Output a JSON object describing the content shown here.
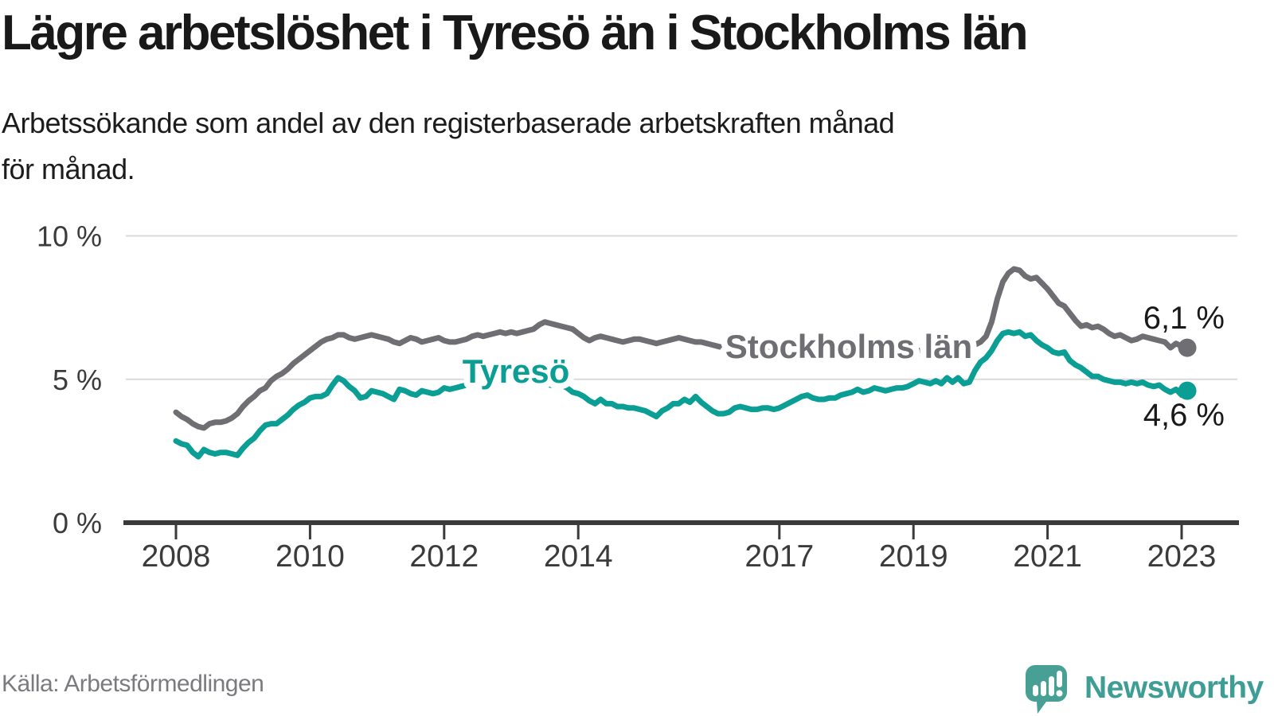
{
  "title": "Lägre arbetslöshet i Tyresö än i Stockholms län",
  "subtitle_lines": [
    "Arbetssökande som andel av den registerbaserade arbetskraften månad",
    "för månad."
  ],
  "source": "Källa: Arbetsförmedlingen",
  "logo": {
    "brand": "Newsworthy"
  },
  "colors": {
    "accent_teal": "#0A9E94",
    "accent_gray": "#6E6E73",
    "axis": "#3A3A3A",
    "grid": "#DADADA",
    "text": "#191919",
    "logo_icon": "#48A094",
    "logo_text": "#3E9D94"
  },
  "chart_data": {
    "type": "line",
    "title": "Lägre arbetslöshet i Tyresö än i Stockholms län",
    "subtitle": "Arbetssökande som andel av den registerbaserade arbetskraften månad för månad.",
    "x_unit": "month",
    "x_start": "2008-01",
    "x_end": "2023-02",
    "ylim": [
      0,
      10.4
    ],
    "grid": "horizontal",
    "legend_position": "inline-labels",
    "x_ticks": [
      {
        "year": 2008,
        "label": "2008"
      },
      {
        "year": 2010,
        "label": "2010"
      },
      {
        "year": 2012,
        "label": "2012"
      },
      {
        "year": 2014,
        "label": "2014"
      },
      {
        "year": 2017,
        "label": "2017"
      },
      {
        "year": 2019,
        "label": "2019"
      },
      {
        "year": 2021,
        "label": "2021"
      },
      {
        "year": 2023,
        "label": "2023"
      }
    ],
    "y_ticks": [
      {
        "value": 0,
        "label": "0 %"
      },
      {
        "value": 5,
        "label": "5 %"
      },
      {
        "value": 10,
        "label": "10 %"
      }
    ],
    "series": [
      {
        "name": "Stockholms län",
        "color": "#6E6E73",
        "end_value": 6.1,
        "end_label": "6,1 %",
        "values": [
          3.85,
          3.7,
          3.6,
          3.45,
          3.35,
          3.3,
          3.45,
          3.5,
          3.5,
          3.55,
          3.65,
          3.8,
          4.05,
          4.25,
          4.4,
          4.6,
          4.7,
          4.95,
          5.1,
          5.2,
          5.35,
          5.55,
          5.7,
          5.85,
          6.0,
          6.15,
          6.3,
          6.4,
          6.45,
          6.55,
          6.55,
          6.45,
          6.4,
          6.45,
          6.5,
          6.55,
          6.5,
          6.45,
          6.4,
          6.3,
          6.25,
          6.35,
          6.45,
          6.4,
          6.3,
          6.35,
          6.4,
          6.45,
          6.35,
          6.3,
          6.3,
          6.35,
          6.4,
          6.5,
          6.55,
          6.5,
          6.55,
          6.6,
          6.65,
          6.6,
          6.65,
          6.6,
          6.65,
          6.7,
          6.75,
          6.9,
          7.0,
          6.95,
          6.9,
          6.85,
          6.8,
          6.75,
          6.6,
          6.45,
          6.35,
          6.45,
          6.5,
          6.45,
          6.4,
          6.35,
          6.3,
          6.35,
          6.4,
          6.4,
          6.35,
          6.3,
          6.25,
          6.3,
          6.35,
          6.4,
          6.45,
          6.4,
          6.35,
          6.3,
          6.3,
          6.25,
          6.2,
          6.15,
          6.1,
          6.1,
          6.05,
          6.1,
          6.15,
          6.1,
          6.05,
          6.0,
          6.0,
          6.0,
          6.0,
          5.95,
          5.95,
          5.95,
          6.0,
          6.05,
          6.1,
          6.05,
          6.0,
          6.0,
          6.0,
          6.0,
          6.0,
          5.95,
          5.9,
          5.9,
          5.9,
          5.95,
          6.0,
          5.95,
          5.9,
          5.9,
          5.95,
          6.0,
          6.0,
          6.0,
          6.0,
          6.0,
          6.05,
          6.1,
          6.15,
          6.1,
          6.1,
          6.1,
          6.15,
          6.2,
          6.3,
          6.5,
          7.0,
          7.8,
          8.4,
          8.7,
          8.85,
          8.8,
          8.6,
          8.5,
          8.55,
          8.35,
          8.15,
          7.9,
          7.65,
          7.55,
          7.3,
          7.05,
          6.85,
          6.9,
          6.8,
          6.85,
          6.75,
          6.6,
          6.5,
          6.55,
          6.45,
          6.35,
          6.4,
          6.5,
          6.45,
          6.4,
          6.35,
          6.3,
          6.1,
          6.25,
          6.15,
          6.1
        ]
      },
      {
        "name": "Tyresö",
        "color": "#0A9E94",
        "end_value": 4.6,
        "end_label": "4,6 %",
        "values": [
          2.85,
          2.75,
          2.7,
          2.45,
          2.3,
          2.55,
          2.45,
          2.4,
          2.45,
          2.45,
          2.4,
          2.35,
          2.6,
          2.8,
          2.95,
          3.2,
          3.4,
          3.45,
          3.45,
          3.6,
          3.75,
          3.95,
          4.1,
          4.2,
          4.35,
          4.4,
          4.4,
          4.5,
          4.8,
          5.05,
          4.95,
          4.75,
          4.6,
          4.35,
          4.4,
          4.6,
          4.55,
          4.5,
          4.4,
          4.3,
          4.65,
          4.6,
          4.5,
          4.45,
          4.6,
          4.55,
          4.5,
          4.55,
          4.7,
          4.65,
          4.7,
          4.75,
          4.8,
          4.85,
          4.9,
          4.85,
          4.8,
          4.8,
          4.85,
          4.9,
          4.9,
          4.85,
          4.85,
          4.9,
          4.9,
          4.85,
          4.85,
          4.8,
          4.8,
          4.8,
          4.7,
          4.55,
          4.5,
          4.4,
          4.25,
          4.15,
          4.3,
          4.15,
          4.15,
          4.05,
          4.05,
          4.0,
          4.0,
          3.95,
          3.9,
          3.8,
          3.7,
          3.9,
          4.0,
          4.15,
          4.15,
          4.3,
          4.2,
          4.4,
          4.2,
          4.05,
          3.9,
          3.8,
          3.8,
          3.85,
          4.0,
          4.05,
          4.0,
          3.95,
          3.95,
          4.0,
          4.0,
          3.95,
          4.0,
          4.1,
          4.2,
          4.3,
          4.4,
          4.45,
          4.35,
          4.3,
          4.3,
          4.35,
          4.35,
          4.45,
          4.5,
          4.55,
          4.65,
          4.55,
          4.6,
          4.7,
          4.65,
          4.6,
          4.65,
          4.7,
          4.7,
          4.75,
          4.85,
          4.95,
          4.9,
          4.85,
          4.95,
          4.85,
          5.05,
          4.9,
          5.05,
          4.85,
          4.9,
          5.3,
          5.6,
          5.75,
          6.0,
          6.35,
          6.6,
          6.65,
          6.6,
          6.65,
          6.5,
          6.55,
          6.35,
          6.2,
          6.1,
          5.95,
          5.9,
          5.95,
          5.65,
          5.5,
          5.4,
          5.25,
          5.1,
          5.1,
          5.0,
          4.95,
          4.9,
          4.9,
          4.85,
          4.9,
          4.85,
          4.9,
          4.8,
          4.75,
          4.8,
          4.65,
          4.55,
          4.65,
          4.45,
          4.6
        ]
      }
    ]
  }
}
